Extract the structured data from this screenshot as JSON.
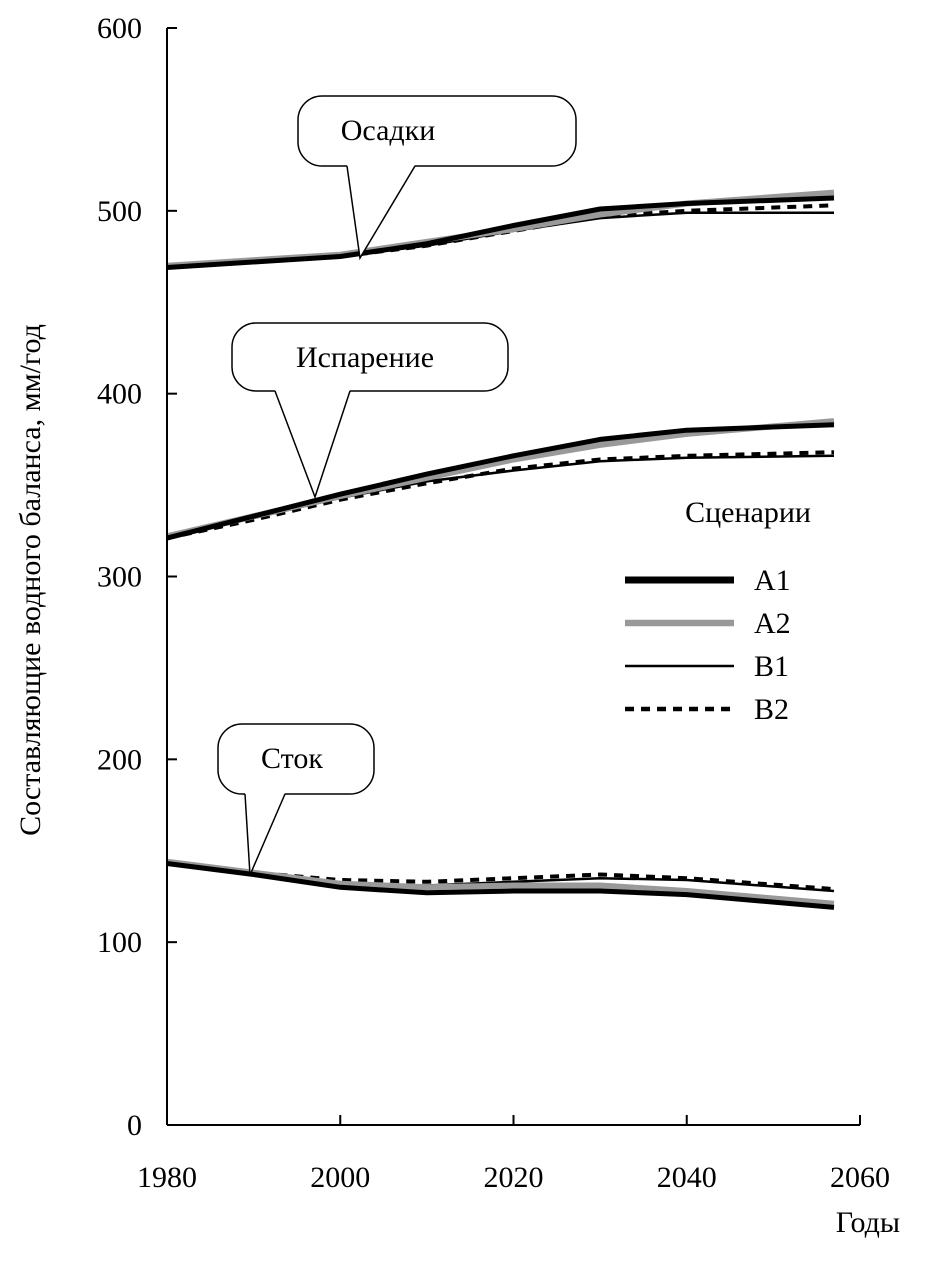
{
  "chart_data": {
    "type": "line",
    "xlabel": "Годы",
    "ylabel": "Составляющие водного баланса, мм/год",
    "xlim": [
      1980,
      2060
    ],
    "ylim": [
      0,
      600
    ],
    "x_ticks": [
      1980,
      2000,
      2020,
      2040,
      2060
    ],
    "y_ticks": [
      0,
      100,
      200,
      300,
      400,
      500,
      600
    ],
    "legend": {
      "title": "Сценарии",
      "position": "right",
      "entries": [
        "A1",
        "A2",
        "B1",
        "B2"
      ]
    },
    "scenario_styles": {
      "A1": {
        "color": "#000000",
        "style": "thick-solid"
      },
      "A2": {
        "color": "#999999",
        "style": "thick-solid"
      },
      "B1": {
        "color": "#000000",
        "style": "thin-solid"
      },
      "B2": {
        "color": "#000000",
        "style": "dashed"
      }
    },
    "groups": [
      {
        "label": "Осадки",
        "series": [
          {
            "scenario": "A1",
            "x": [
              1980,
              2000,
              2010,
              2020,
              2030,
              2040,
              2057
            ],
            "y": [
              469,
              475,
              482,
              492,
              501,
              504,
              507
            ]
          },
          {
            "scenario": "A2",
            "x": [
              1980,
              2000,
              2010,
              2020,
              2030,
              2040,
              2057
            ],
            "y": [
              470,
              476,
              483,
              490,
              498,
              504,
              510
            ]
          },
          {
            "scenario": "B1",
            "x": [
              1980,
              2000,
              2010,
              2020,
              2030,
              2040,
              2057
            ],
            "y": [
              469,
              475,
              481,
              489,
              496,
              499,
              499
            ]
          },
          {
            "scenario": "B2",
            "x": [
              1980,
              2000,
              2010,
              2020,
              2030,
              2040,
              2057
            ],
            "y": [
              469,
              475,
              481,
              489,
              497,
              500,
              503
            ]
          }
        ]
      },
      {
        "label": "Испарение",
        "series": [
          {
            "scenario": "A1",
            "x": [
              1980,
              1990,
              2000,
              2010,
              2020,
              2030,
              2040,
              2057
            ],
            "y": [
              321,
              333,
              345,
              356,
              366,
              375,
              380,
              383
            ]
          },
          {
            "scenario": "A2",
            "x": [
              1980,
              1990,
              2000,
              2010,
              2020,
              2030,
              2040,
              2057
            ],
            "y": [
              322,
              333,
              344,
              354,
              364,
              372,
              378,
              385
            ]
          },
          {
            "scenario": "B1",
            "x": [
              1980,
              1990,
              2000,
              2010,
              2020,
              2030,
              2040,
              2057
            ],
            "y": [
              321,
              332,
              343,
              352,
              358,
              363,
              365,
              366
            ]
          },
          {
            "scenario": "B2",
            "x": [
              1980,
              1990,
              2000,
              2010,
              2020,
              2030,
              2040,
              2057
            ],
            "y": [
              321,
              331,
              342,
              351,
              359,
              364,
              366,
              368
            ]
          }
        ]
      },
      {
        "label": "Сток",
        "series": [
          {
            "scenario": "A1",
            "x": [
              1980,
              1990,
              2000,
              2010,
              2020,
              2030,
              2040,
              2057
            ],
            "y": [
              143,
              137,
              130,
              127,
              128,
              128,
              126,
              119
            ]
          },
          {
            "scenario": "A2",
            "x": [
              1980,
              1990,
              2000,
              2010,
              2020,
              2030,
              2040,
              2057
            ],
            "y": [
              144,
              138,
              132,
              130,
              131,
              131,
              128,
              121
            ]
          },
          {
            "scenario": "B1",
            "x": [
              1980,
              1990,
              2000,
              2010,
              2020,
              2030,
              2040,
              2057
            ],
            "y": [
              143,
              137,
              132,
              131,
              133,
              135,
              134,
              128
            ]
          },
          {
            "scenario": "B2",
            "x": [
              1980,
              1990,
              2000,
              2010,
              2020,
              2030,
              2040,
              2057
            ],
            "y": [
              143,
              138,
              134,
              133,
              135,
              137,
              135,
              129
            ]
          }
        ]
      }
    ]
  }
}
